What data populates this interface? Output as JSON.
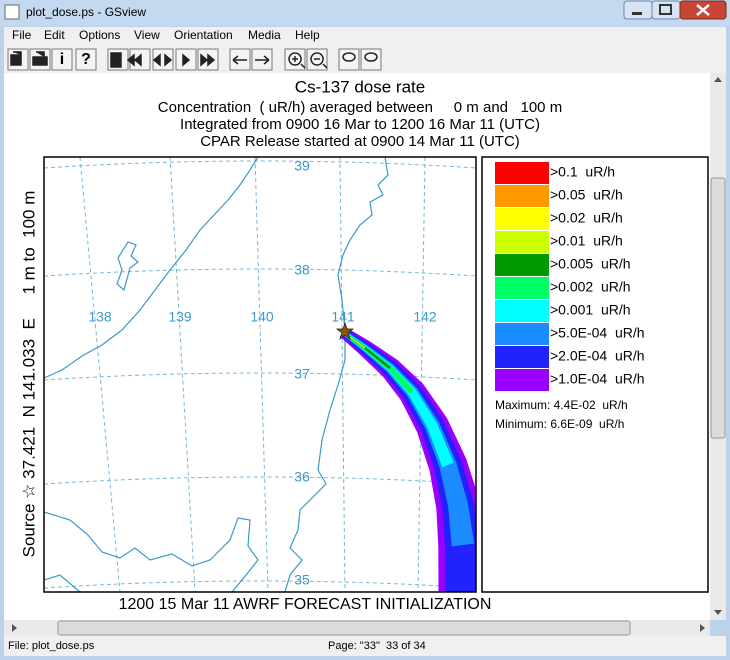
{
  "window": {
    "title": "plot_dose.ps - GSview"
  },
  "menu": [
    "File",
    "Edit",
    "Options",
    "View",
    "Orientation",
    "Media",
    "Help"
  ],
  "toolbar": [
    "i",
    "?"
  ],
  "plot": {
    "title_lines": [
      "Cs-137 dose rate",
      "Concentration  ( uR/h) averaged between     0 m and   100 m",
      "Integrated from 0900 16 Mar to 1200 16 Mar 11 (UTC)",
      "CPAR Release started at 0900 14 Mar 11 (UTC)"
    ],
    "source_label": "Source ☆ 37.421  N 141.033  E     1 m to  100 m",
    "lat_labels": [
      "39",
      "38",
      "37",
      "36",
      "35"
    ],
    "lon_labels": [
      "138",
      "139",
      "140",
      "141",
      "142"
    ],
    "legend": [
      {
        "label": ">0.1  uR/h",
        "color": "#ff0000"
      },
      {
        "label": ">0.05  uR/h",
        "color": "#ff9900"
      },
      {
        "label": ">0.02  uR/h",
        "color": "#ffff00"
      },
      {
        "label": ">0.01  uR/h",
        "color": "#ccff00"
      },
      {
        "label": ">0.005  uR/h",
        "color": "#009900"
      },
      {
        "label": ">0.002  uR/h",
        "color": "#00ff66"
      },
      {
        "label": ">0.001  uR/h",
        "color": "#00ffff"
      },
      {
        "label": ">5.0E-04  uR/h",
        "color": "#1a8cff"
      },
      {
        "label": ">2.0E-04  uR/h",
        "color": "#2222ff"
      },
      {
        "label": ">1.0E-04  uR/h",
        "color": "#9900ff"
      }
    ],
    "maximum": "Maximum: 4.4E-02  uR/h",
    "minimum": "Minimum: 6.6E-09  uR/h",
    "footer": "1200 15 Mar 11 AWRF FORECAST INITIALIZATION"
  },
  "status": {
    "file": "File: plot_dose.ps",
    "page": "Page: \"33\"  33 of 34"
  }
}
